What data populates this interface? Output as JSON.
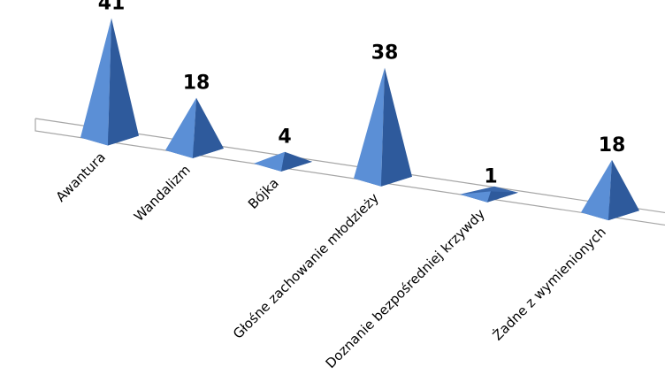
{
  "chart_data": {
    "type": "bar",
    "bar_shape": "pyramid-3d",
    "categories": [
      "Awantura",
      "Wandalizm",
      "Bójka",
      "Głośne zachowanie młodzieży",
      "Doznanie bezpośredniej krzywdy",
      "Żadne z wymienionych"
    ],
    "values": [
      41,
      18,
      4,
      38,
      1,
      18
    ],
    "title": "",
    "xlabel": "",
    "ylabel": "",
    "ylim": [
      0,
      41
    ],
    "grid": false,
    "legend": "none",
    "colors": {
      "face_light": "#5b8fd6",
      "face_dark": "#2e5a9c",
      "base_light": "#6d9ee0",
      "base_dark": "#3a68ac",
      "floor_stroke": "#a6a6a6"
    }
  }
}
